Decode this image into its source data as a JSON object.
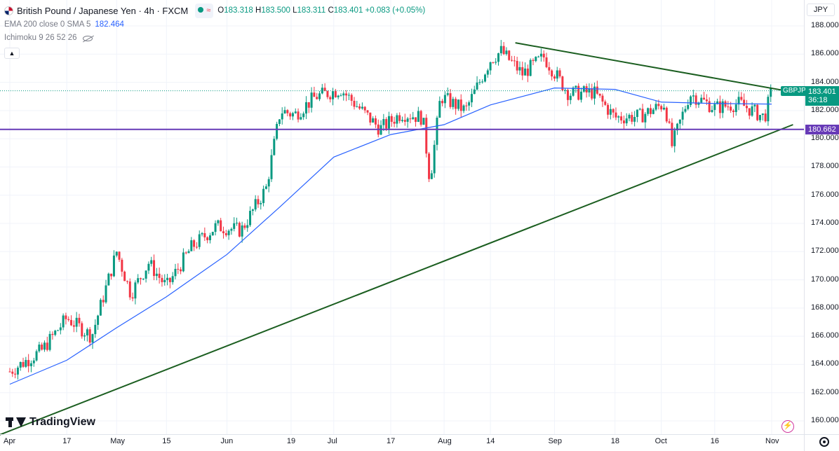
{
  "header": {
    "title": "British Pound / Japanese Yen · 4h · FXCM",
    "approx_symbol": "≈",
    "ohlc": {
      "o_label": "O",
      "o": "183.318",
      "h_label": "H",
      "h": "183.500",
      "l_label": "L",
      "l": "183.311",
      "c_label": "C",
      "c": "183.401",
      "change": "+0.083 (+0.05%)"
    },
    "indicators": [
      {
        "label": "EMA 200 close 0 SMA 5",
        "value": "182.464"
      },
      {
        "label": "Ichimoku 9 26 52 26"
      }
    ]
  },
  "currency_button": "JPY",
  "symbol_tag": "GBPJPY",
  "price_tags": {
    "last_price": "183.401",
    "countdown": "36:18",
    "horizontal_line": "180.662"
  },
  "branding": {
    "logo_text": "TradingView"
  },
  "colors": {
    "up": "#089981",
    "down": "#f23645",
    "ema": "#2962ff",
    "trendline": "#1b5e20",
    "hline": "#673ab7",
    "grid": "#f0f3fa"
  },
  "chart_data": {
    "type": "line",
    "title": "British Pound / Japanese Yen · 4h · FXCM",
    "ylim": [
      159.0,
      189.0
    ],
    "y_ticks": [
      "160.000",
      "162.000",
      "164.000",
      "166.000",
      "168.000",
      "170.000",
      "172.000",
      "174.000",
      "176.000",
      "178.000",
      "180.000",
      "182.000",
      "184.000",
      "186.000",
      "188.000"
    ],
    "x_ticks": [
      "Apr",
      "17",
      "May",
      "15",
      "Jun",
      "19",
      "Jul",
      "17",
      "Aug",
      "14",
      "Sep",
      "18",
      "Oct",
      "16",
      "Nov"
    ],
    "grid": true,
    "price_series": {
      "name": "GBPJPY",
      "x": [
        "Apr 1",
        "Apr 10",
        "Apr 17",
        "Apr 24",
        "May 1",
        "May 5",
        "May 10",
        "May 15",
        "May 22",
        "May 29",
        "Jun 5",
        "Jun 12",
        "Jun 16",
        "Jun 20",
        "Jun 26",
        "Jul 3",
        "Jul 10",
        "Jul 14",
        "Jul 20",
        "Jul 26",
        "Jul 28",
        "Jul 31",
        "Aug 7",
        "Aug 14",
        "Aug 17",
        "Aug 23",
        "Aug 29",
        "Sep 5",
        "Sep 12",
        "Sep 18",
        "Sep 25",
        "Oct 2",
        "Oct 4",
        "Oct 9",
        "Oct 16",
        "Oct 23",
        "Oct 30",
        "Nov 1"
      ],
      "close": [
        163.5,
        165.0,
        167.3,
        166.0,
        172.0,
        169.0,
        171.2,
        169.5,
        172.3,
        173.8,
        173.5,
        176.5,
        182.0,
        181.7,
        183.0,
        183.5,
        181.7,
        180.7,
        181.8,
        181.5,
        177.0,
        183.0,
        182.0,
        185.6,
        186.2,
        184.6,
        185.8,
        183.2,
        183.3,
        181.5,
        181.6,
        182.5,
        179.5,
        183.2,
        182.2,
        182.5,
        181.5,
        183.4
      ]
    },
    "series": [
      {
        "name": "EMA 200 close 0 SMA 5",
        "x": [
          "Apr 1",
          "Apr 17",
          "May 1",
          "May 15",
          "Jun 1",
          "Jun 16",
          "Jul 1",
          "Jul 17",
          "Aug 1",
          "Aug 14",
          "Sep 1",
          "Sep 18",
          "Oct 1",
          "Oct 16",
          "Nov 1"
        ],
        "values": [
          162.6,
          164.3,
          166.6,
          168.8,
          171.8,
          175.2,
          178.7,
          180.3,
          181.0,
          182.4,
          183.6,
          183.5,
          182.6,
          182.5,
          182.46
        ]
      }
    ],
    "trendlines": [
      {
        "from": {
          "x": "Mar 29",
          "y": 159.0
        },
        "to": {
          "x": "Nov 7",
          "y": 181.0
        }
      },
      {
        "from": {
          "x": "Aug 21",
          "y": 186.8
        },
        "to": {
          "x": "Nov 5",
          "y": 183.4
        }
      }
    ],
    "horizontal_line": 180.662,
    "last_price": 183.401,
    "ema_value": 182.464
  }
}
